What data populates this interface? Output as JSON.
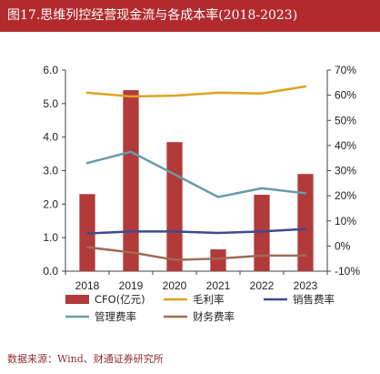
{
  "header": {
    "title": "图17.思维列控经营现金流与各成本率(2018-2023)"
  },
  "footer": {
    "source": "数据来源：Wind、财通证券研究所"
  },
  "chart_data": {
    "type": "bar",
    "categories": [
      "2018",
      "2019",
      "2020",
      "2021",
      "2022",
      "2023"
    ],
    "bars": [
      {
        "name": "CFO(亿元)",
        "axis": "left",
        "color": "#b23a3a",
        "values": [
          2.3,
          5.4,
          3.85,
          0.65,
          2.28,
          2.9
        ]
      }
    ],
    "lines": [
      {
        "name": "毛利率",
        "axis": "right",
        "color": "#e0a21f",
        "values": [
          61.0,
          59.5,
          59.8,
          61.0,
          60.7,
          63.5
        ]
      },
      {
        "name": "销售费率",
        "axis": "right",
        "color": "#3d4a8f",
        "values": [
          5.0,
          5.8,
          5.8,
          5.2,
          5.8,
          6.8
        ]
      },
      {
        "name": "管理费率",
        "axis": "right",
        "color": "#6a9aaa",
        "values": [
          33.0,
          37.5,
          28.5,
          19.5,
          23.0,
          21.0
        ]
      },
      {
        "name": "财务费率",
        "axis": "right",
        "color": "#a06a55",
        "values": [
          -0.5,
          -2.5,
          -5.5,
          -5.0,
          -3.8,
          -3.8
        ]
      }
    ],
    "y_left": {
      "min": 0,
      "max": 6,
      "ticks": [
        "0.0",
        "1.0",
        "2.0",
        "3.0",
        "4.0",
        "5.0",
        "6.0"
      ]
    },
    "y_right": {
      "min": -10,
      "max": 70,
      "ticks": [
        "-10%",
        "0%",
        "10%",
        "20%",
        "30%",
        "40%",
        "50%",
        "60%",
        "70%"
      ]
    },
    "legend": {
      "position": "bottom",
      "columns": 3
    },
    "grid": false
  }
}
